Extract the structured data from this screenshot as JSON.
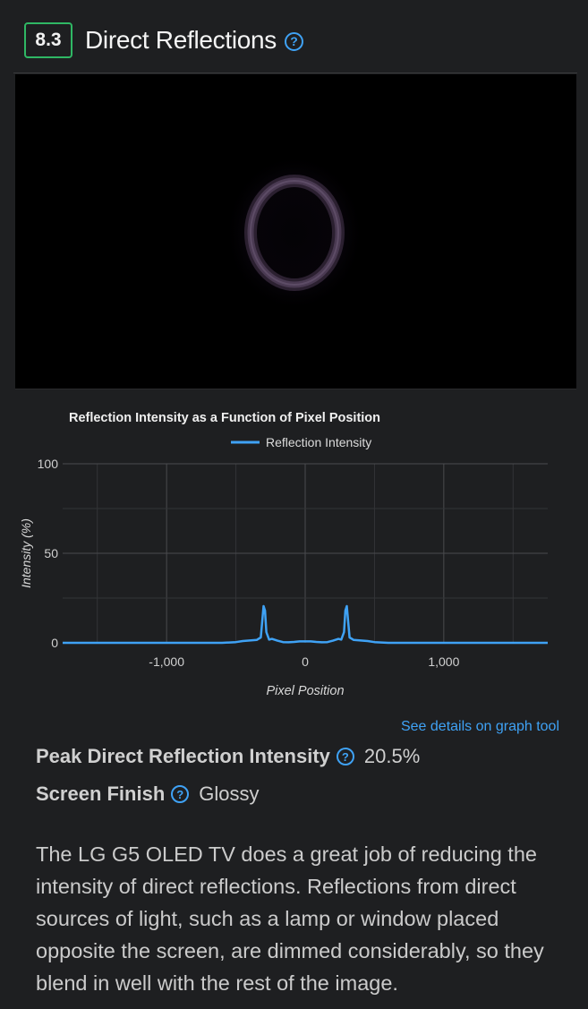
{
  "header": {
    "score": "8.3",
    "title": "Direct Reflections",
    "help_glyph": "?"
  },
  "colors": {
    "score_border": "#2fb764",
    "accent": "#3fa2f5",
    "series_line": "#3fa2f5",
    "background": "#1e1f21"
  },
  "chart_data": {
    "type": "line",
    "title": "Reflection Intensity as a Function of Pixel Position",
    "xlabel": "Pixel Position",
    "ylabel": "Intensity (%)",
    "xlim": [
      -1750,
      1750
    ],
    "ylim": [
      0,
      100
    ],
    "x_ticks": [
      -1000,
      0,
      1000
    ],
    "x_tick_labels": [
      "-1,000",
      "0",
      "1,000"
    ],
    "y_ticks": [
      0,
      50,
      100
    ],
    "y_tick_labels": [
      "0",
      "50",
      "100"
    ],
    "grid": true,
    "legend_position": "top-center",
    "series": [
      {
        "name": "Reflection Intensity",
        "x": [
          -1750,
          -600,
          -500,
          -450,
          -400,
          -350,
          -320,
          -310,
          -300,
          -290,
          -280,
          -260,
          -240,
          -200,
          -160,
          -120,
          -80,
          -40,
          0,
          40,
          80,
          120,
          160,
          200,
          240,
          260,
          280,
          290,
          300,
          310,
          320,
          350,
          400,
          450,
          500,
          600,
          1750
        ],
        "y": [
          0,
          0,
          0.4,
          1,
          1.3,
          1.6,
          3,
          12,
          20.5,
          18,
          6,
          1.8,
          2.2,
          1.2,
          0.4,
          0.3,
          0.5,
          0.8,
          0.8,
          0.8,
          0.5,
          0.3,
          0.4,
          1.2,
          2.2,
          1.8,
          6,
          18,
          20.5,
          12,
          3,
          1.6,
          1.3,
          1,
          0.4,
          0,
          0
        ]
      }
    ]
  },
  "link": {
    "graph_tool": "See details on graph tool"
  },
  "specs": [
    {
      "label": "Peak Direct Reflection Intensity",
      "value": "20.5%"
    },
    {
      "label": "Screen Finish",
      "value": "Glossy"
    }
  ],
  "description": "The LG G5 OLED TV does a great job of reducing the intensity of direct reflections. Reflections from direct sources of light, such as a lamp or window placed opposite the screen, are dimmed considerably, so they blend in well with the rest of the image."
}
